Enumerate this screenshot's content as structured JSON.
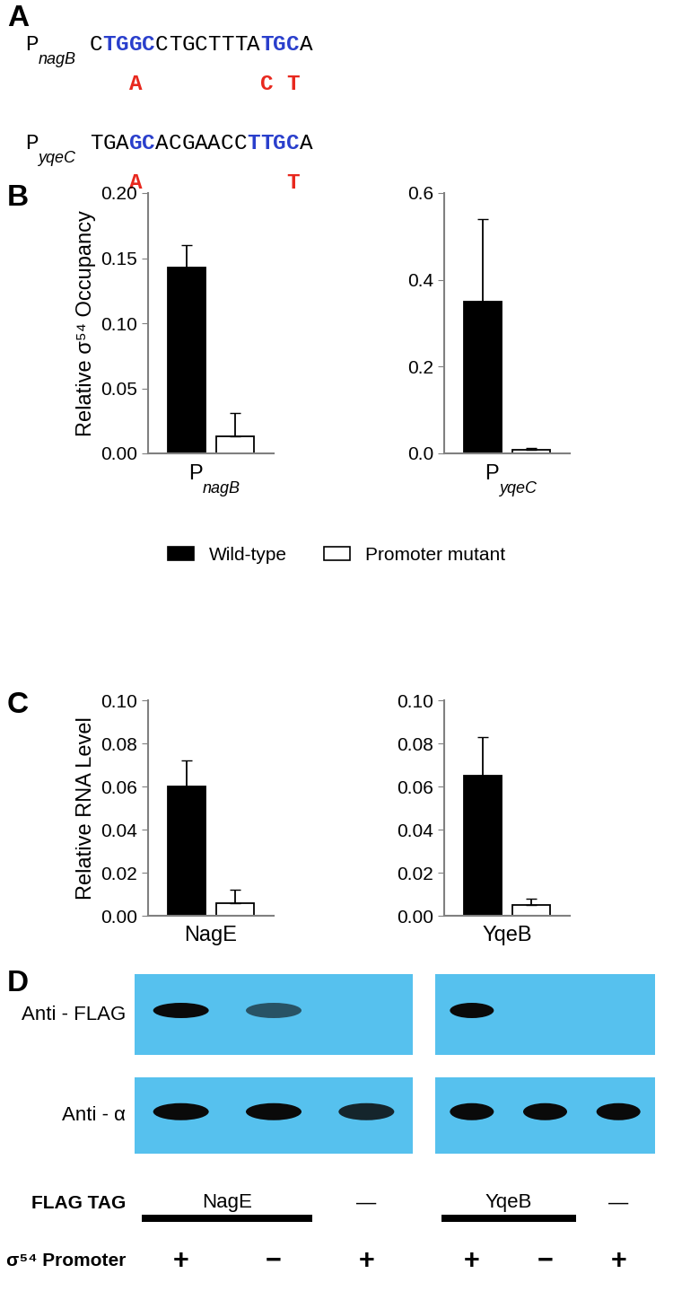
{
  "panel_labels": [
    "A",
    "B",
    "C",
    "D"
  ],
  "sequences": [
    {
      "prefix": "P",
      "name": "nagB",
      "sequence": "CTGGCCTGCTTTATGCA",
      "highlight": [
        1,
        2,
        3,
        4,
        13,
        14,
        15
      ],
      "mutations": [
        {
          "position": 3,
          "base": "A"
        },
        {
          "position": 13,
          "base": "C"
        },
        {
          "position": 15,
          "base": "T"
        }
      ]
    },
    {
      "prefix": "P",
      "name": "yqeC",
      "sequence": "TGAGCACGAACCTTGCA",
      "highlight": [
        3,
        4,
        12,
        13,
        14,
        15
      ],
      "mutations": [
        {
          "position": 3,
          "base": "A"
        },
        {
          "position": 15,
          "base": "T"
        }
      ]
    }
  ],
  "chart_data": [
    {
      "type": "bar",
      "y_label": "Relative σ⁵⁴ Occupancy",
      "categories": [
        "PnagB"
      ],
      "series": [
        {
          "name": "Wild-type",
          "color": "#000000",
          "values": [
            0.143
          ],
          "errors": [
            0.017
          ]
        },
        {
          "name": "Promoter mutant",
          "color": "#ffffff",
          "values": [
            0.013
          ],
          "errors": [
            0.018
          ]
        }
      ],
      "ylim": [
        0.0,
        0.2
      ],
      "yticks": [
        {
          "value": 0.0,
          "label": "0.00"
        },
        0.05,
        {
          "value": 0.1,
          "label": "0.10"
        },
        0.15,
        {
          "value": 0.2,
          "label": "0.20"
        }
      ],
      "legend": "upper center"
    },
    {
      "type": "bar",
      "categories": [
        "PyqeC"
      ],
      "series": [
        {
          "name": "Wild-type",
          "color": "#000000",
          "values": [
            0.35
          ],
          "errors": [
            0.19
          ]
        },
        {
          "name": "Promoter mutant",
          "color": "#ffffff",
          "values": [
            0.008
          ],
          "errors": [
            0.004
          ]
        }
      ],
      "ylim": [
        0.0,
        0.6
      ],
      "yticks": [
        0.0,
        0.2,
        0.4,
        0.6
      ]
    },
    {
      "type": "bar",
      "y_label": "Relative RNA Level",
      "categories": [
        "NagE"
      ],
      "series": [
        {
          "name": "Wild-type",
          "color": "#000000",
          "values": [
            0.06
          ],
          "errors": [
            0.012
          ]
        },
        {
          "name": "Promoter mutant",
          "color": "#ffffff",
          "values": [
            0.006
          ],
          "errors": [
            0.006
          ]
        }
      ],
      "ylim": [
        0.0,
        0.1
      ],
      "yticks": [
        {
          "value": 0.0,
          "label": "0.00"
        },
        0.02,
        0.04,
        0.06,
        0.08,
        {
          "value": 0.1,
          "label": "0.10"
        }
      ]
    },
    {
      "type": "bar",
      "categories": [
        "YqeB"
      ],
      "series": [
        {
          "name": "Wild-type",
          "color": "#000000",
          "values": [
            0.065
          ],
          "errors": [
            0.018
          ]
        },
        {
          "name": "Promoter mutant",
          "color": "#ffffff",
          "values": [
            0.005
          ],
          "errors": [
            0.003
          ]
        }
      ],
      "ylim": [
        0.0,
        0.1
      ],
      "yticks": [
        {
          "value": 0.0,
          "label": "0.00"
        },
        0.02,
        0.04,
        0.06,
        0.08,
        {
          "value": 0.1,
          "label": "0.10"
        }
      ]
    }
  ],
  "blot": {
    "row_labels": [
      "Anti - FLAG",
      "Anti - α"
    ],
    "panels": [
      {
        "tag_label": "NagE",
        "flag_bands": [
          1.0,
          0.6,
          0.0
        ],
        "alpha_bands": [
          1.0,
          1.0,
          0.85
        ]
      },
      {
        "tag_label": "YqeB",
        "flag_bands": [
          1.0,
          0.0,
          0.0
        ],
        "alpha_bands": [
          1.0,
          1.0,
          1.0
        ]
      }
    ],
    "tag_row": "FLAG TAG",
    "untagged": "—",
    "promoter_row": "σ⁵⁴ Promoter",
    "promoter": [
      "+",
      "−",
      "+"
    ]
  }
}
